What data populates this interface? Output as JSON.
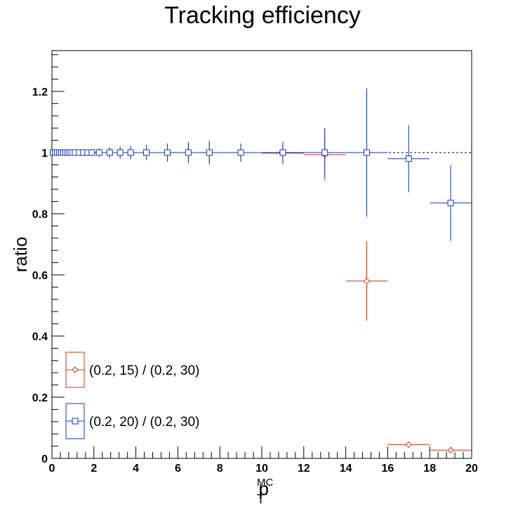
{
  "chart_data": {
    "type": "scatter",
    "title": "Tracking efficiency",
    "xlabel_main": "p",
    "xlabel_sub": "T",
    "xlabel_sup": "MC",
    "ylabel": "ratio",
    "xlim": [
      0,
      20
    ],
    "ylim": [
      0,
      1.3333
    ],
    "xticks": [
      0,
      2,
      4,
      6,
      8,
      10,
      12,
      14,
      16,
      18,
      20
    ],
    "xtick_labels": [
      "0",
      "2",
      "4",
      "6",
      "8",
      "10",
      "12",
      "14",
      "16",
      "18",
      "20"
    ],
    "yticks": [
      0,
      0.2,
      0.4,
      0.6,
      0.8,
      1.0,
      1.2
    ],
    "ytick_labels": [
      "0",
      "0.2",
      "0.4",
      "0.6",
      "0.8",
      "1",
      "1.2"
    ],
    "reference_line": 1.0,
    "grid": false,
    "legend_position": "bottom-left",
    "series": [
      {
        "name": "(0.2, 15) / (0.2, 30)",
        "color": "#cc3311",
        "marker": "diamond",
        "points": [
          {
            "x": 0.05,
            "y": 1.0,
            "xerr": 0.05,
            "yerr": 0.003
          },
          {
            "x": 0.15,
            "y": 1.0,
            "xerr": 0.05,
            "yerr": 0.003
          },
          {
            "x": 0.25,
            "y": 1.0,
            "xerr": 0.05,
            "yerr": 0.003
          },
          {
            "x": 0.35,
            "y": 1.0,
            "xerr": 0.05,
            "yerr": 0.003
          },
          {
            "x": 0.45,
            "y": 1.0,
            "xerr": 0.05,
            "yerr": 0.004
          },
          {
            "x": 0.55,
            "y": 1.0,
            "xerr": 0.05,
            "yerr": 0.004
          },
          {
            "x": 0.65,
            "y": 1.0,
            "xerr": 0.05,
            "yerr": 0.004
          },
          {
            "x": 0.75,
            "y": 1.0,
            "xerr": 0.05,
            "yerr": 0.004
          },
          {
            "x": 0.85,
            "y": 1.0,
            "xerr": 0.05,
            "yerr": 0.005
          },
          {
            "x": 0.95,
            "y": 1.0,
            "xerr": 0.05,
            "yerr": 0.005
          },
          {
            "x": 1.1,
            "y": 1.0,
            "xerr": 0.1,
            "yerr": 0.006
          },
          {
            "x": 1.3,
            "y": 1.0,
            "xerr": 0.1,
            "yerr": 0.007
          },
          {
            "x": 1.5,
            "y": 1.0,
            "xerr": 0.1,
            "yerr": 0.008
          },
          {
            "x": 1.7,
            "y": 1.0,
            "xerr": 0.1,
            "yerr": 0.009
          },
          {
            "x": 1.9,
            "y": 1.0,
            "xerr": 0.1,
            "yerr": 0.01
          },
          {
            "x": 2.25,
            "y": 1.0,
            "xerr": 0.25,
            "yerr": 0.012
          },
          {
            "x": 2.75,
            "y": 1.0,
            "xerr": 0.25,
            "yerr": 0.015
          },
          {
            "x": 3.25,
            "y": 1.0,
            "xerr": 0.25,
            "yerr": 0.018
          },
          {
            "x": 3.75,
            "y": 1.0,
            "xerr": 0.25,
            "yerr": 0.02
          },
          {
            "x": 4.5,
            "y": 1.0,
            "xerr": 0.5,
            "yerr": 0.022
          },
          {
            "x": 5.5,
            "y": 1.0,
            "xerr": 0.5,
            "yerr": 0.026
          },
          {
            "x": 6.5,
            "y": 1.0,
            "xerr": 0.5,
            "yerr": 0.03
          },
          {
            "x": 7.5,
            "y": 1.0,
            "xerr": 0.5,
            "yerr": 0.034
          },
          {
            "x": 9.0,
            "y": 1.0,
            "xerr": 1.0,
            "yerr": 0.03
          },
          {
            "x": 11.0,
            "y": 0.998,
            "xerr": 1.0,
            "yerr": 0.036
          },
          {
            "x": 13.0,
            "y": 0.993,
            "xerr": 1.0,
            "yerr": 0.085
          },
          {
            "x": 15.0,
            "y": 0.58,
            "xerr": 1.0,
            "yerr": 0.13
          },
          {
            "x": 17.0,
            "y": 0.045,
            "xerr": 1.0,
            "yerr": 0.006
          },
          {
            "x": 19.0,
            "y": 0.027,
            "xerr": 1.0,
            "yerr": 0.004
          }
        ]
      },
      {
        "name": "(0.2, 20) / (0.2, 30)",
        "color": "#1133bb",
        "marker": "square",
        "points": [
          {
            "x": 0.05,
            "y": 1.0,
            "xerr": 0.05,
            "yerr": 0.003
          },
          {
            "x": 0.15,
            "y": 1.0,
            "xerr": 0.05,
            "yerr": 0.003
          },
          {
            "x": 0.25,
            "y": 1.0,
            "xerr": 0.05,
            "yerr": 0.003
          },
          {
            "x": 0.35,
            "y": 1.0,
            "xerr": 0.05,
            "yerr": 0.003
          },
          {
            "x": 0.45,
            "y": 1.0,
            "xerr": 0.05,
            "yerr": 0.004
          },
          {
            "x": 0.55,
            "y": 1.0,
            "xerr": 0.05,
            "yerr": 0.004
          },
          {
            "x": 0.65,
            "y": 1.0,
            "xerr": 0.05,
            "yerr": 0.004
          },
          {
            "x": 0.75,
            "y": 1.0,
            "xerr": 0.05,
            "yerr": 0.004
          },
          {
            "x": 0.85,
            "y": 1.0,
            "xerr": 0.05,
            "yerr": 0.005
          },
          {
            "x": 0.95,
            "y": 1.0,
            "xerr": 0.05,
            "yerr": 0.005
          },
          {
            "x": 1.1,
            "y": 1.0,
            "xerr": 0.1,
            "yerr": 0.006
          },
          {
            "x": 1.3,
            "y": 1.0,
            "xerr": 0.1,
            "yerr": 0.007
          },
          {
            "x": 1.5,
            "y": 1.0,
            "xerr": 0.1,
            "yerr": 0.008
          },
          {
            "x": 1.7,
            "y": 1.0,
            "xerr": 0.1,
            "yerr": 0.01
          },
          {
            "x": 1.9,
            "y": 1.0,
            "xerr": 0.1,
            "yerr": 0.012
          },
          {
            "x": 2.25,
            "y": 1.0,
            "xerr": 0.25,
            "yerr": 0.015
          },
          {
            "x": 2.75,
            "y": 1.0,
            "xerr": 0.25,
            "yerr": 0.018
          },
          {
            "x": 3.25,
            "y": 1.0,
            "xerr": 0.25,
            "yerr": 0.02
          },
          {
            "x": 3.75,
            "y": 1.0,
            "xerr": 0.25,
            "yerr": 0.022
          },
          {
            "x": 4.5,
            "y": 1.0,
            "xerr": 0.5,
            "yerr": 0.025
          },
          {
            "x": 5.5,
            "y": 1.0,
            "xerr": 0.5,
            "yerr": 0.03
          },
          {
            "x": 6.5,
            "y": 1.0,
            "xerr": 0.5,
            "yerr": 0.035
          },
          {
            "x": 7.5,
            "y": 1.0,
            "xerr": 0.5,
            "yerr": 0.04
          },
          {
            "x": 9.0,
            "y": 1.0,
            "xerr": 1.0,
            "yerr": 0.03
          },
          {
            "x": 11.0,
            "y": 1.0,
            "xerr": 1.0,
            "yerr": 0.035
          },
          {
            "x": 13.0,
            "y": 1.0,
            "xerr": 1.0,
            "yerr": 0.08
          },
          {
            "x": 15.0,
            "y": 1.0,
            "xerr": 1.0,
            "yerr": 0.21
          },
          {
            "x": 17.0,
            "y": 0.98,
            "xerr": 1.0,
            "yerr": 0.11
          },
          {
            "x": 19.0,
            "y": 0.835,
            "xerr": 1.0,
            "yerr": 0.125
          }
        ]
      }
    ]
  }
}
